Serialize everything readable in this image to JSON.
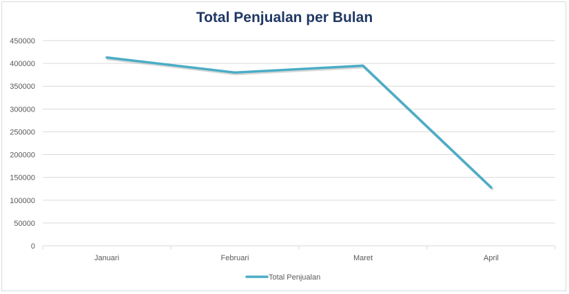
{
  "chart_data": {
    "type": "line",
    "title": "Total Penjualan per Bulan",
    "categories": [
      "Januari",
      "Februari",
      "Maret",
      "April"
    ],
    "series": [
      {
        "name": "Total Penjualan",
        "values": [
          413000,
          380000,
          395000,
          128000
        ],
        "color": "#4bacc6"
      }
    ],
    "ylim": [
      0,
      450000
    ],
    "yticks": [
      "0",
      "50000",
      "100000",
      "150000",
      "200000",
      "250000",
      "300000",
      "350000",
      "400000",
      "450000"
    ],
    "grid": true,
    "legend": "bottom"
  }
}
